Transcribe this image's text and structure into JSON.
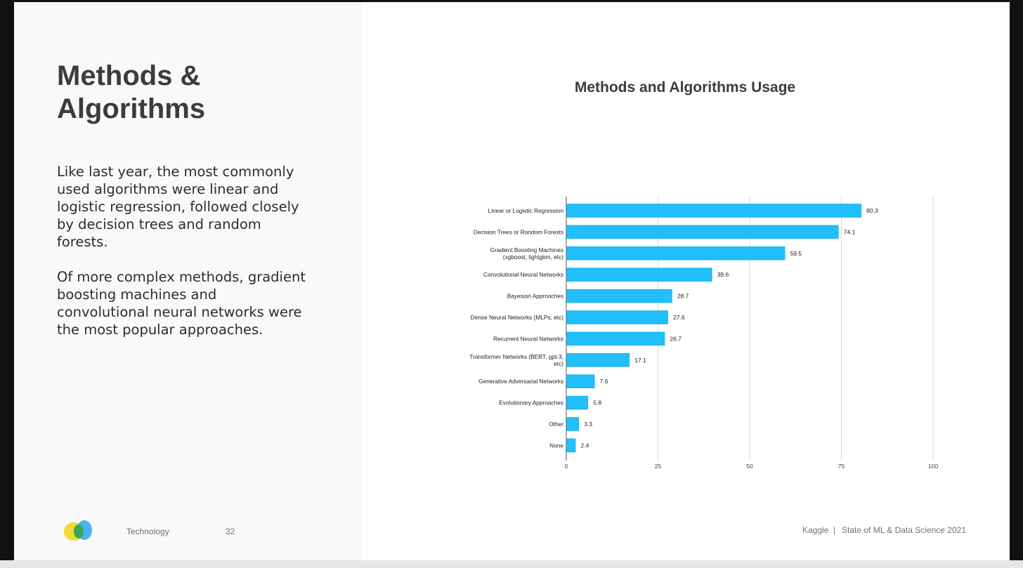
{
  "slide": {
    "heading_line1": "Methods &",
    "heading_line2": "Algorithms",
    "paragraph1": "Like last year, the most commonly used algorithms were linear and logistic regression, followed closely by decision trees and random forests.",
    "paragraph2": "Of more complex methods, gradient boosting machines and convolutional neural networks were the most popular approaches."
  },
  "footer": {
    "section": "Technology",
    "page_number": "32",
    "brand": "Kaggle",
    "separator": "|",
    "report": "State of ML & Data Science 2021"
  },
  "colors": {
    "bar": "#21bffc",
    "bar_edge": "#1aa5da",
    "gridline": "#d9d9d9",
    "axis": "#555555",
    "text": "#3c3c3c",
    "logo_yellow": "#f5d931",
    "logo_blue": "#4ab3f4",
    "logo_green": "#3aa757"
  },
  "chart_data": {
    "type": "bar",
    "orientation": "horizontal",
    "title": "Methods and Algorithms Usage",
    "categories": [
      "Linear or Logistic Regression",
      "Decision Trees or Random Forests",
      "Gradient Boosting Machines (xgboost, lightgbm, etc)",
      "Convolutional Neural Networks",
      "Bayesian Approaches",
      "Dense Neural Networks (MLPs, etc)",
      "Recurrent Neural Networks",
      "Transformer Networks (BERT, gpt-3, etc)",
      "Generative Adversarial Networks",
      "Evolutionary Approaches",
      "Other",
      "None"
    ],
    "category_label_lines": [
      [
        "Linear or Logistic Regression"
      ],
      [
        "Decision Trees or Random Forests"
      ],
      [
        "Gradient Boosting Machines",
        "(xgboost, lightgbm, etc)"
      ],
      [
        "Convolutional Neural Networks"
      ],
      [
        "Bayesian Approaches"
      ],
      [
        "Dense Neural Networks (MLPs, etc)"
      ],
      [
        "Recurrent Neural Networks"
      ],
      [
        "Transformer Networks (BERT, gpt-3,",
        "etc)"
      ],
      [
        "Generative Adversarial Networks"
      ],
      [
        "Evolutionary Approaches"
      ],
      [
        "Other"
      ],
      [
        "None"
      ]
    ],
    "values": [
      80.3,
      74.1,
      59.5,
      39.6,
      28.7,
      27.6,
      26.7,
      17.1,
      7.6,
      5.8,
      3.3,
      2.4
    ],
    "value_labels": [
      "80.3",
      "74.1",
      "59.5",
      "39.6",
      "28.7",
      "27.6",
      "26.7",
      "17.1",
      "7.6",
      "5.8",
      "3.3",
      "2.4"
    ],
    "xlim": [
      0,
      100
    ],
    "xticks": [
      0,
      25,
      50,
      75,
      100
    ],
    "xtick_labels": [
      "0",
      "25",
      "50",
      "75",
      "100"
    ],
    "xlabel": "",
    "ylabel": "",
    "grid": true,
    "legend": "none"
  }
}
